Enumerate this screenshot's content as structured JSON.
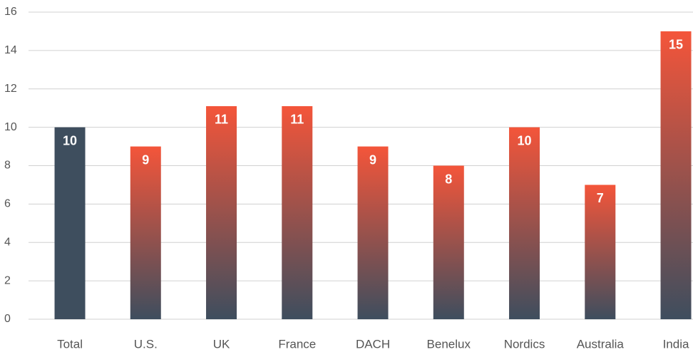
{
  "chart_data": {
    "type": "bar",
    "categories": [
      "Total",
      "U.S.",
      "UK",
      "France",
      "DACH",
      "Benelux",
      "Nordics",
      "Australia",
      "India"
    ],
    "values": [
      10,
      9,
      11.1,
      11.1,
      9,
      8,
      10,
      7,
      15
    ],
    "value_labels": [
      "10",
      "9",
      "11",
      "11",
      "9",
      "8",
      "10",
      "7",
      "15"
    ],
    "colors": [
      "#3e4e5e",
      "#f4553a",
      "#f4553a",
      "#f4553a",
      "#f4553a",
      "#f4553a",
      "#f4553a",
      "#f4553a",
      "#f4553a"
    ],
    "gradient_end": "#3e4e5e",
    "ylim": [
      0,
      16
    ],
    "yticks": [
      0,
      2,
      4,
      6,
      8,
      10,
      12,
      14,
      16
    ],
    "grid": true
  }
}
